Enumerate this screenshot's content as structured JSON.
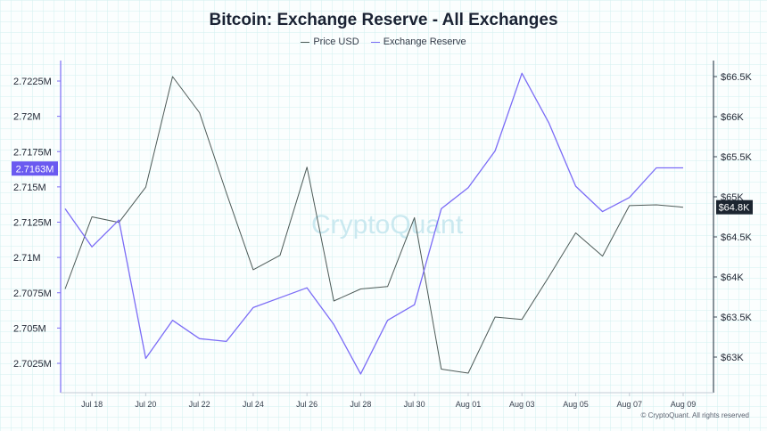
{
  "chart_data": {
    "type": "line",
    "title": "Bitcoin: Exchange Reserve - All Exchanges",
    "xlabel": "",
    "ylabel_left": "",
    "ylabel_right": "",
    "x": [
      "Jul 17",
      "Jul 18",
      "Jul 19",
      "Jul 20",
      "Jul 21",
      "Jul 22",
      "Jul 23",
      "Jul 24",
      "Jul 25",
      "Jul 26",
      "Jul 27",
      "Jul 28",
      "Jul 29",
      "Jul 30",
      "Jul 31",
      "Aug 01",
      "Aug 02",
      "Aug 03",
      "Aug 04",
      "Aug 05",
      "Aug 06",
      "Aug 07",
      "Aug 08",
      "Aug 09"
    ],
    "x_tick_labels": [
      "Jul 18",
      "Jul 20",
      "Jul 22",
      "Jul 24",
      "Jul 26",
      "Jul 28",
      "Jul 30",
      "Aug 01",
      "Aug 03",
      "Aug 05",
      "Aug 07",
      "Aug 09"
    ],
    "series": [
      {
        "name": "Price USD",
        "axis": "right",
        "color": "#4d5a57",
        "values": [
          63850,
          64750,
          64680,
          65120,
          66500,
          66050,
          65050,
          64090,
          64270,
          65370,
          63700,
          63850,
          63880,
          64740,
          62850,
          62800,
          63500,
          63470,
          64000,
          64550,
          64260,
          64890,
          64900,
          64870
        ]
      },
      {
        "name": "Exchange Reserve",
        "axis": "left",
        "color": "#7b6cf6",
        "values": [
          2.71345,
          2.71075,
          2.71265,
          2.70285,
          2.70555,
          2.70425,
          2.70405,
          2.70645,
          2.70715,
          2.70785,
          2.70525,
          2.70175,
          2.70555,
          2.70665,
          2.71345,
          2.71495,
          2.71755,
          2.72305,
          2.71955,
          2.71505,
          2.71325,
          2.71425,
          2.71635,
          2.71635
        ]
      }
    ],
    "y_left": {
      "ticks": [
        2.7025,
        2.705,
        2.7075,
        2.71,
        2.7125,
        2.715,
        2.7175,
        2.72,
        2.7225
      ],
      "tick_labels": [
        "2.7025M",
        "2.705M",
        "2.7075M",
        "2.71M",
        "2.7125M",
        "2.715M",
        "2.7175M",
        "2.72M",
        "2.7225M"
      ],
      "current_label": "2.7163M",
      "current_value": 2.7163
    },
    "y_right": {
      "ticks": [
        63000,
        63500,
        64000,
        64500,
        65000,
        65500,
        66000,
        66500
      ],
      "tick_labels": [
        "$63K",
        "$63.5K",
        "$64K",
        "$64.5K",
        "$65K",
        "$65.5K",
        "$66K",
        "$66.5K"
      ],
      "current_label": "$64.8K",
      "current_value": 64870
    },
    "watermark": "CryptoQuant",
    "legend": "top-center",
    "grid": true
  },
  "copyright": "© CryptoQuant. All rights reserved"
}
